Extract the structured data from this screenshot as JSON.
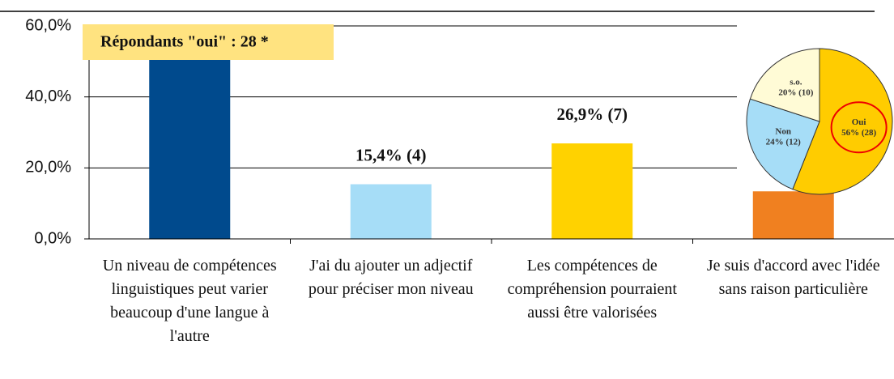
{
  "chart_data": {
    "type": "bar",
    "categories": [
      "Un niveau de compétences linguistiques peut varier beaucoup d'une langue à l'autre",
      "J'ai du ajouter un adjectif pour préciser mon niveau",
      "Les compétences de compréhension pourraient aussi être valorisées",
      "Je suis d'accord avec l'idée sans raison particulière"
    ],
    "values": [
      57.7,
      15.4,
      26.9,
      13.4
    ],
    "value_labels": [
      null,
      "15,4% (4)",
      "26,9% (7)",
      null
    ],
    "colors": [
      "#004a8d",
      "#a6ddf7",
      "#ffd200",
      "#f08020"
    ],
    "ylim": [
      0,
      60
    ],
    "yticks": [
      {
        "value": 0,
        "label": "0,0%"
      },
      {
        "value": 20,
        "label": "20,0%"
      },
      {
        "value": 40,
        "label": "40,0%"
      },
      {
        "value": 60,
        "label": "60,0%"
      }
    ],
    "grid": true,
    "annotation": "Répondants \"oui\" : 28 *",
    "inset": {
      "type": "pie",
      "categories": [
        "Oui",
        "Non",
        "s.o."
      ],
      "values": [
        56,
        24,
        20
      ],
      "value_labels": [
        "56% (28)",
        "24% (12)",
        "20% (10)"
      ],
      "colors": [
        "#ffcc00",
        "#a6ddf7",
        "#fffbd6"
      ],
      "highlight": "Oui"
    }
  }
}
